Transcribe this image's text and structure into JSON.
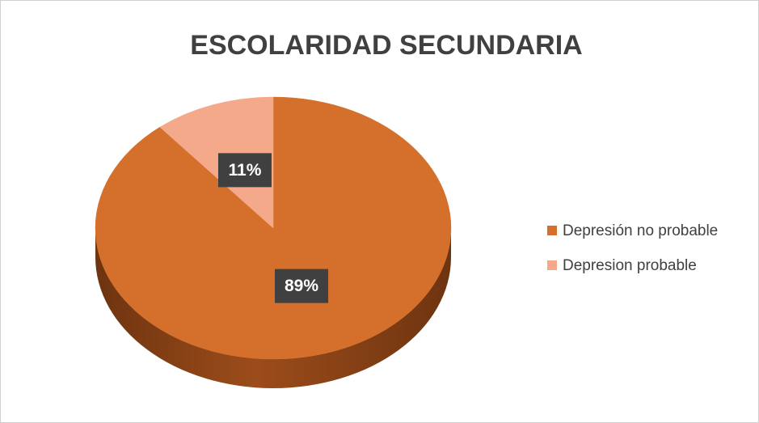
{
  "chart_data": {
    "type": "pie",
    "title": "ESCOLARIDAD SECUNDARIA",
    "categories": [
      "Depresión no probable",
      "Depresion probable"
    ],
    "values": [
      89,
      11
    ],
    "value_labels": [
      "89%",
      "11%"
    ],
    "colors": [
      "#d4702c",
      "#f4a98a"
    ],
    "legend": "right"
  }
}
